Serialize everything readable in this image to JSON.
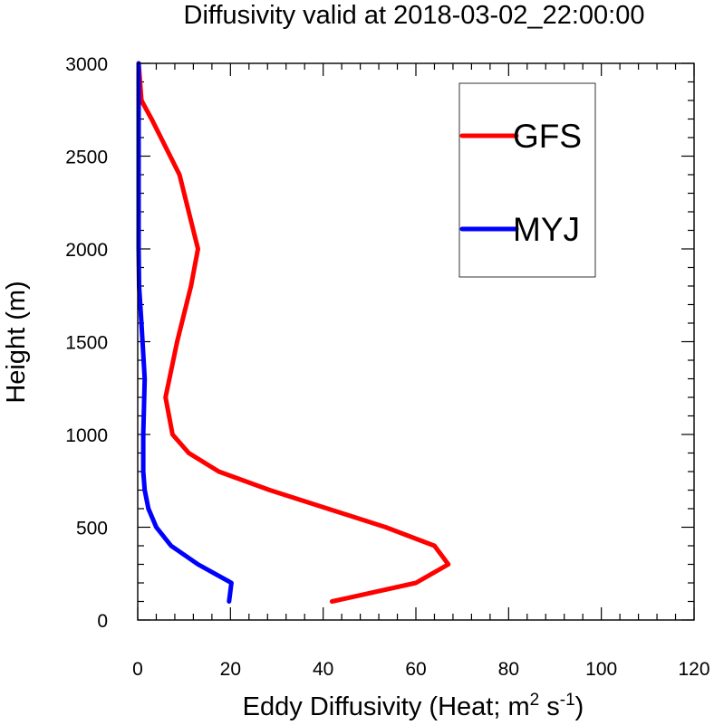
{
  "chart_data": {
    "type": "line",
    "title": "Diffusivity valid at 2018-03-02_22:00:00",
    "xlabel_main": "Eddy Diffusivity (Heat; m",
    "xlabel_sup1": "2",
    "xlabel_mid": " s",
    "xlabel_sup2": "-1",
    "xlabel_end": ")",
    "ylabel": "Height (m)",
    "xlim": [
      0,
      120
    ],
    "ylim": [
      0,
      3000
    ],
    "xticks": [
      "0",
      "20",
      "40",
      "60",
      "80",
      "100",
      "120"
    ],
    "yticks": [
      "0",
      "500",
      "1000",
      "1500",
      "2000",
      "2500",
      "3000"
    ],
    "legend_position": "top-right",
    "series": [
      {
        "name": "GFS",
        "color": "#ff0000",
        "x": [
          41.9,
          60.0,
          67.0,
          64.0,
          53.5,
          28.5,
          17.5,
          11.0,
          7.5,
          6.0,
          8.5,
          11.5,
          13.0,
          12.0,
          9.0,
          3.0,
          0.8,
          0.2
        ],
        "y": [
          100,
          200,
          300,
          400,
          500,
          700,
          800,
          900,
          1000,
          1200,
          1500,
          1800,
          2000,
          2100,
          2400,
          2700,
          2800,
          3000
        ]
      },
      {
        "name": "MYJ",
        "color": "#0000ff",
        "x": [
          19.7,
          20.2,
          13.0,
          7.2,
          4.0,
          2.3,
          1.5,
          1.2,
          1.2,
          1.2,
          1.5,
          0.8,
          0.3,
          0.2,
          0.2,
          0.2,
          0.2
        ],
        "y": [
          100,
          200,
          300,
          400,
          500,
          600,
          700,
          800,
          900,
          1000,
          1300,
          1600,
          1800,
          2000,
          2400,
          2800,
          3000
        ]
      }
    ]
  }
}
